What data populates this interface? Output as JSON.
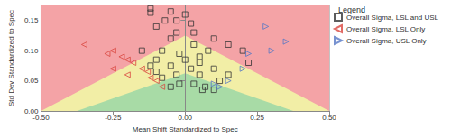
{
  "chart_data": {
    "type": "scatter",
    "x_label": "Mean Shift Standardized to Spec",
    "y_label": "Std Dev Standardized to Spec",
    "xlim": [
      -0.5,
      0.5
    ],
    "xticks": [
      {
        "value": -0.5,
        "label": "-0.50"
      },
      {
        "value": -0.25,
        "label": "-0.25"
      },
      {
        "value": 0,
        "label": "0.00"
      },
      {
        "value": 0.25,
        "label": "0.25"
      },
      {
        "value": 0.5,
        "label": "0.50"
      }
    ],
    "ylim": [
      0,
      0.175
    ],
    "yticks": [
      {
        "value": 0,
        "label": "0.00"
      },
      0.05,
      {
        "value": 0.1,
        "label": "0.10"
      },
      0.15
    ],
    "grid": false,
    "legend": "top-right",
    "legend_title": "Legend",
    "zones": [
      {
        "color": "#f4a3a6",
        "points": [
          [
            -0.5,
            0
          ],
          [
            -0.5,
            0.175
          ],
          [
            0.5,
            0.175
          ],
          [
            0.5,
            0
          ]
        ]
      },
      {
        "color": "#f2eea6",
        "points": [
          [
            -0.5,
            0
          ],
          [
            0,
            0.125
          ],
          [
            0.5,
            0
          ]
        ]
      },
      {
        "color": "#a8dba6",
        "points": [
          [
            -0.375,
            0
          ],
          [
            0,
            0.0625
          ],
          [
            0.375,
            0
          ]
        ]
      }
    ],
    "series": [
      {
        "name": "Overall Sigma, LSL and USL",
        "color": "#333333",
        "marker": "square",
        "x": [
          -0.12,
          -0.12,
          -0.05,
          0.0,
          -0.07,
          -0.03,
          0.02,
          -0.1,
          -0.03,
          0.03,
          0.1,
          -0.05,
          0.15,
          0.03,
          0.08,
          -0.08,
          -0.15,
          -0.02,
          0.05,
          -0.1,
          0.0,
          0.05,
          -0.05,
          -0.12,
          0.1,
          0.02,
          -0.03,
          0.05,
          -0.08,
          0.12,
          -0.02,
          0.03,
          0.07,
          -0.05,
          0.1,
          0.06,
          -0.1,
          0.2,
          0.22,
          0.15
        ],
        "values": [
          0.17,
          0.163,
          0.165,
          0.16,
          0.15,
          0.15,
          0.145,
          0.14,
          0.13,
          0.13,
          0.12,
          0.12,
          0.11,
          0.11,
          0.1,
          0.1,
          0.1,
          0.095,
          0.09,
          0.085,
          0.085,
          0.08,
          0.075,
          0.075,
          0.07,
          0.07,
          0.06,
          0.06,
          0.055,
          0.05,
          0.045,
          0.045,
          0.04,
          0.04,
          0.035,
          0.035,
          0.065,
          0.1,
          0.08,
          0.06
        ]
      },
      {
        "name": "Overall Sigma, LSL Only",
        "color": "#d9463f",
        "marker": "triangle-left",
        "x": [
          -0.25,
          -0.22,
          -0.2,
          -0.18,
          -0.15,
          -0.13,
          -0.1,
          -0.25,
          -0.2,
          -0.08,
          -0.35,
          -0.27,
          -0.12
        ],
        "values": [
          0.1,
          0.09,
          0.085,
          0.08,
          0.07,
          0.065,
          0.05,
          0.07,
          0.06,
          0.04,
          0.11,
          0.095,
          0.055
        ]
      },
      {
        "name": "Overall Sigma, USL Only",
        "color": "#5577c4",
        "marker": "triangle-right",
        "x": [
          0.28,
          0.35,
          0.22,
          0.15,
          0.12,
          0.2,
          0.1,
          0.3
        ],
        "values": [
          0.14,
          0.115,
          0.095,
          0.05,
          0.04,
          0.07,
          0.045,
          0.1
        ]
      }
    ]
  }
}
